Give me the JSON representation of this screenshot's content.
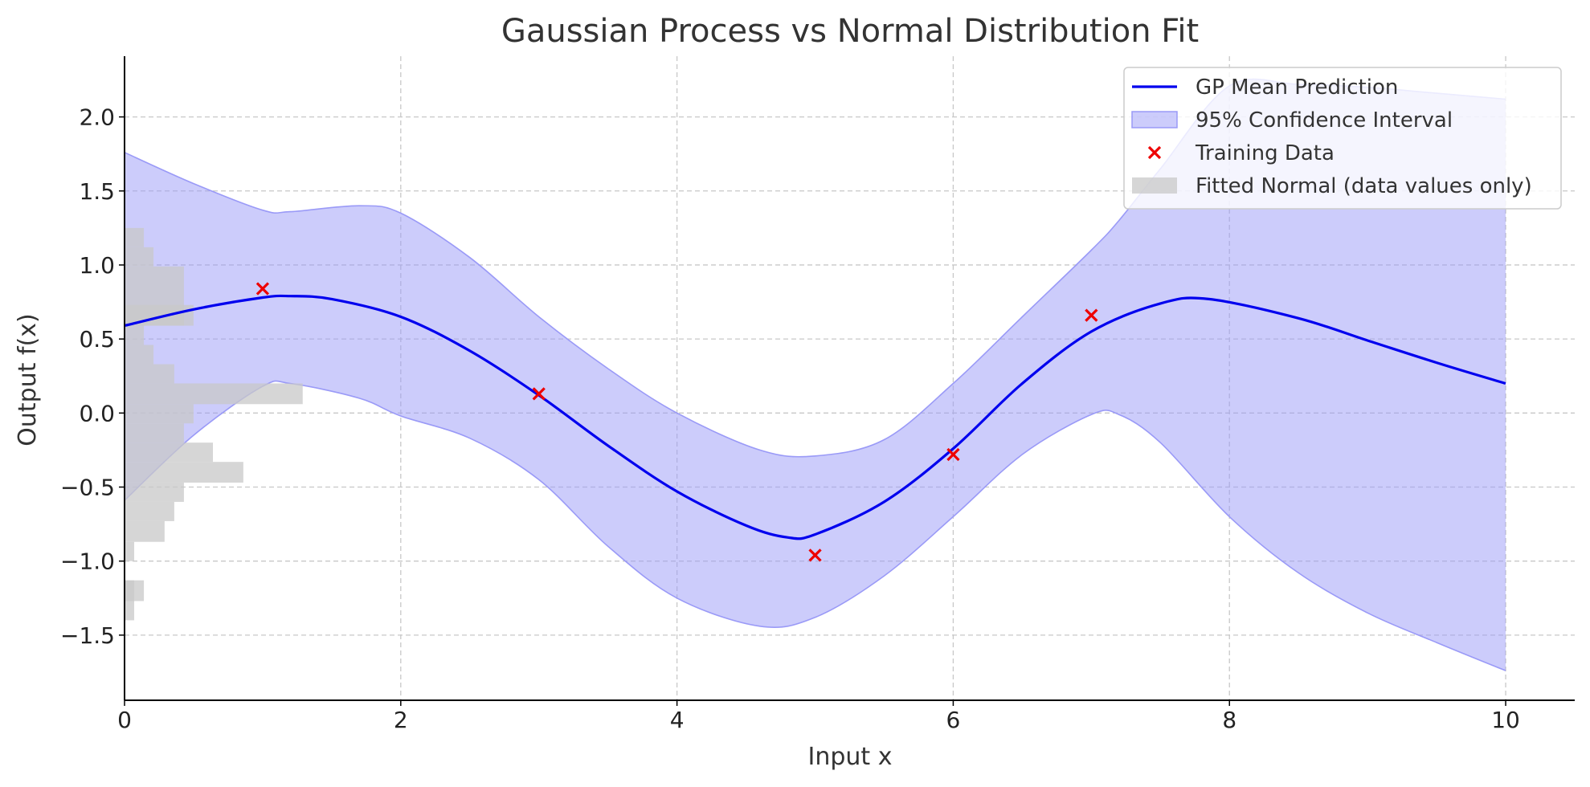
{
  "chart_data": {
    "type": "line",
    "title": "Gaussian Process vs Normal Distribution Fit",
    "xlabel": "Input x",
    "ylabel": "Output f(x)",
    "xlim": [
      0,
      10.5
    ],
    "ylim": [
      -1.94,
      2.41
    ],
    "xticks": [
      0,
      2,
      4,
      6,
      8,
      10
    ],
    "xtick_labels": [
      "0",
      "2",
      "4",
      "6",
      "8",
      "10"
    ],
    "yticks": [
      -1.5,
      -1.0,
      -0.5,
      0.0,
      0.5,
      1.0,
      1.5,
      2.0
    ],
    "ytick_labels": [
      "−1.5",
      "−1.0",
      "−0.5",
      "0.0",
      "0.5",
      "1.0",
      "1.5",
      "2.0"
    ],
    "grid": true,
    "legend_position": "top-right",
    "legend": [
      {
        "label": "GP Mean Prediction",
        "kind": "line",
        "color": "#0000ee"
      },
      {
        "label": "95% Confidence Interval",
        "kind": "patch",
        "color": "#9a9af7"
      },
      {
        "label": "Training Data",
        "kind": "marker",
        "color": "#ee0000"
      },
      {
        "label": "Fitted Normal (data values only)",
        "kind": "patch",
        "color": "#c8c8c8"
      }
    ],
    "series": [
      {
        "name": "GP Mean Prediction",
        "type": "line",
        "color": "#0000ee",
        "x": [
          0,
          0.5,
          1.0,
          1.2,
          1.5,
          2.0,
          2.5,
          3.0,
          3.5,
          4.0,
          4.5,
          4.8,
          5.0,
          5.5,
          6.0,
          6.5,
          7.0,
          7.5,
          7.85,
          8.5,
          9.0,
          9.5,
          10.0
        ],
        "y": [
          0.59,
          0.7,
          0.78,
          0.79,
          0.77,
          0.65,
          0.42,
          0.12,
          -0.22,
          -0.53,
          -0.76,
          -0.84,
          -0.82,
          -0.6,
          -0.24,
          0.2,
          0.55,
          0.74,
          0.77,
          0.64,
          0.49,
          0.34,
          0.2
        ]
      },
      {
        "name": "95% Confidence Interval",
        "type": "area",
        "color": "#9a9af7",
        "x": [
          0,
          0.5,
          1.0,
          1.2,
          1.7,
          2.0,
          2.5,
          3.0,
          3.5,
          4.0,
          4.6,
          5.0,
          5.5,
          6.0,
          6.5,
          7.0,
          7.2,
          7.5,
          8.0,
          8.5,
          9.0,
          9.5,
          10.0
        ],
        "upper": [
          1.76,
          1.55,
          1.37,
          1.36,
          1.4,
          1.35,
          1.05,
          0.65,
          0.3,
          0.0,
          -0.25,
          -0.29,
          -0.18,
          0.2,
          0.65,
          1.1,
          1.3,
          1.65,
          2.21,
          2.22,
          2.2,
          2.16,
          2.12
        ],
        "lower": [
          -0.59,
          -0.15,
          0.18,
          0.2,
          0.1,
          -0.02,
          -0.17,
          -0.45,
          -0.9,
          -1.25,
          -1.44,
          -1.38,
          -1.1,
          -0.7,
          -0.28,
          -0.01,
          -0.01,
          -0.2,
          -0.7,
          -1.08,
          -1.35,
          -1.55,
          -1.74
        ]
      },
      {
        "name": "Training Data",
        "type": "scatter",
        "color": "#ee0000",
        "x": [
          1,
          3,
          5,
          6,
          7
        ],
        "y": [
          0.84,
          0.13,
          -0.96,
          -0.28,
          0.66
        ]
      },
      {
        "name": "Fitted Normal (data values only)",
        "type": "barh",
        "color": "#c8c8c8",
        "bins": [
          {
            "y0": 1.12,
            "y1": 1.25,
            "width": 0.14
          },
          {
            "y0": 0.99,
            "y1": 1.12,
            "width": 0.21
          },
          {
            "y0": 0.59,
            "y1": 0.99,
            "width": 0.43
          },
          {
            "y0": 0.59,
            "y1": 0.73,
            "width": 0.5
          },
          {
            "y0": 0.46,
            "y1": 0.59,
            "width": 0.14
          },
          {
            "y0": 0.33,
            "y1": 0.46,
            "width": 0.21
          },
          {
            "y0": 0.2,
            "y1": 0.33,
            "width": 0.36
          },
          {
            "y0": 0.06,
            "y1": 0.2,
            "width": 1.29
          },
          {
            "y0": -0.07,
            "y1": 0.06,
            "width": 0.5
          },
          {
            "y0": -0.2,
            "y1": -0.07,
            "width": 0.43
          },
          {
            "y0": -0.33,
            "y1": -0.2,
            "width": 0.64
          },
          {
            "y0": -0.47,
            "y1": -0.33,
            "width": 0.86
          },
          {
            "y0": -0.6,
            "y1": -0.47,
            "width": 0.43
          },
          {
            "y0": -0.73,
            "y1": -0.6,
            "width": 0.36
          },
          {
            "y0": -0.87,
            "y1": -0.73,
            "width": 0.29
          },
          {
            "y0": -1.0,
            "y1": -0.87,
            "width": 0.07
          },
          {
            "y0": -1.13,
            "y1": -1.0,
            "width": 0.0
          },
          {
            "y0": -1.27,
            "y1": -1.13,
            "width": 0.07
          },
          {
            "y0": -1.27,
            "y1": -1.13,
            "width": 0.14
          },
          {
            "y0": -1.4,
            "y1": -1.27,
            "width": 0.07
          }
        ]
      }
    ]
  }
}
